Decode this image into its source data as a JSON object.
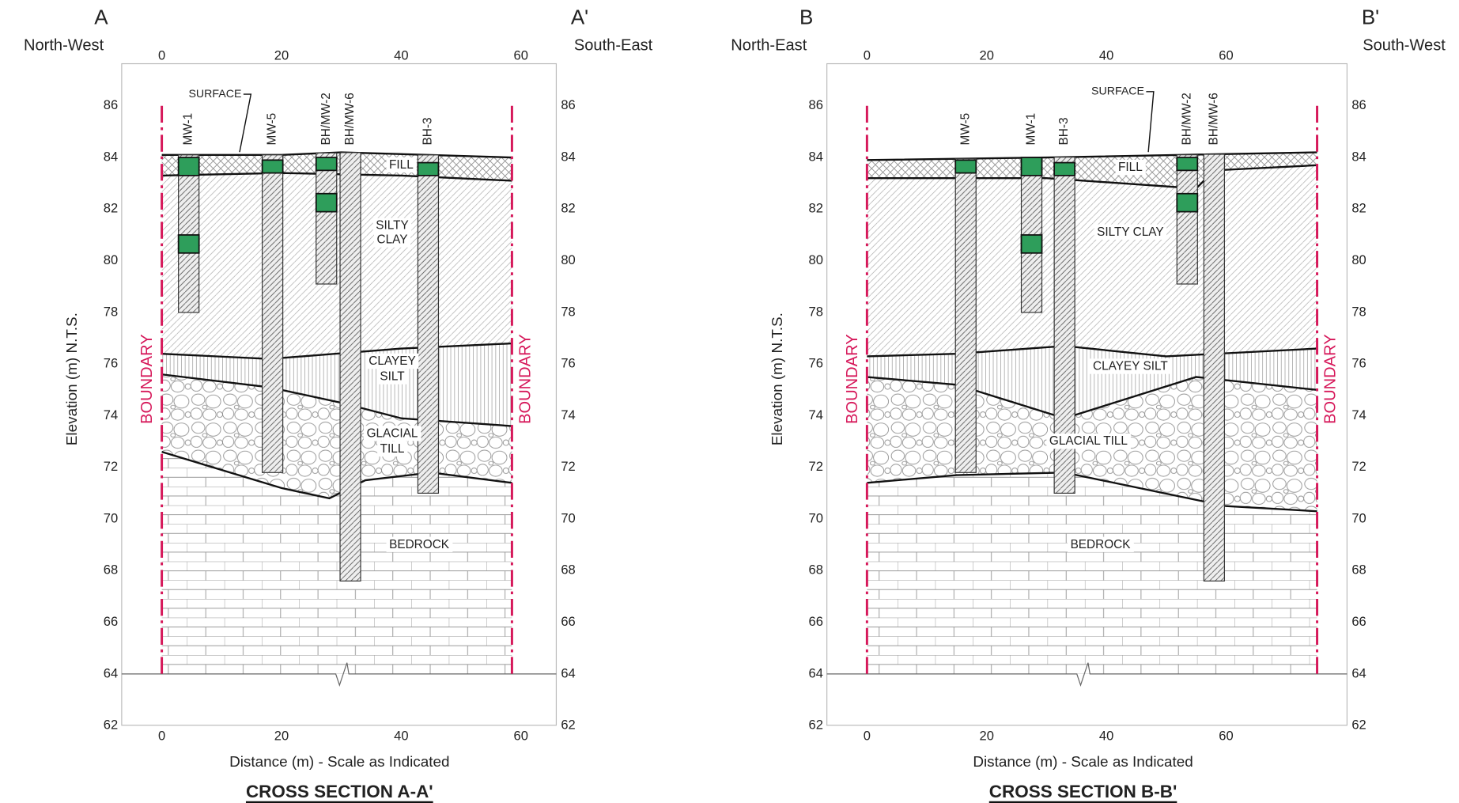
{
  "sections": [
    {
      "start_label": "A",
      "end_label": "A'",
      "start_direction": "North-West",
      "end_direction": "South-East",
      "x_ticks": [
        0,
        20,
        40,
        60
      ],
      "y_ticks": [
        62,
        64,
        66,
        68,
        70,
        72,
        74,
        76,
        78,
        80,
        82,
        84,
        86
      ],
      "y_axis_label": "Elevation (m) N.T.S.",
      "x_axis_label": "Distance (m) - Scale as Indicated",
      "boundary_labels": [
        "BOUNDARY",
        "BOUNDARY"
      ],
      "surface_label": "SURFACE",
      "boreholes": [
        "MW-1",
        "MW-5",
        "BH/MW-2",
        "BH/MW-6",
        "BH-3"
      ],
      "layers": [
        [
          "FILL"
        ],
        [
          "SILTY",
          "CLAY"
        ],
        [
          "CLAYEY",
          "SILT"
        ],
        [
          "GLACIAL",
          "TILL"
        ],
        [
          "BEDROCK"
        ]
      ],
      "title": "CROSS SECTION A-A'"
    },
    {
      "start_label": "B",
      "end_label": "B'",
      "start_direction": "North-East",
      "end_direction": "South-West",
      "x_ticks": [
        0,
        20,
        40,
        60
      ],
      "y_ticks": [
        62,
        64,
        66,
        68,
        70,
        72,
        74,
        76,
        78,
        80,
        82,
        84,
        86
      ],
      "y_axis_label": "Elevation (m) N.T.S.",
      "x_axis_label": "Distance (m) - Scale as Indicated",
      "boundary_labels": [
        "BOUNDARY",
        "BOUNDARY"
      ],
      "surface_label": "SURFACE",
      "boreholes": [
        "MW-5",
        "MW-1",
        "BH-3",
        "BH/MW-2",
        "BH/MW-6"
      ],
      "layers": [
        [
          "FILL"
        ],
        [
          "SILTY CLAY"
        ],
        [
          "CLAYEY SILT"
        ],
        [
          "GLACIAL TILL"
        ],
        [
          "BEDROCK"
        ]
      ],
      "title": "CROSS SECTION B-B'"
    }
  ]
}
